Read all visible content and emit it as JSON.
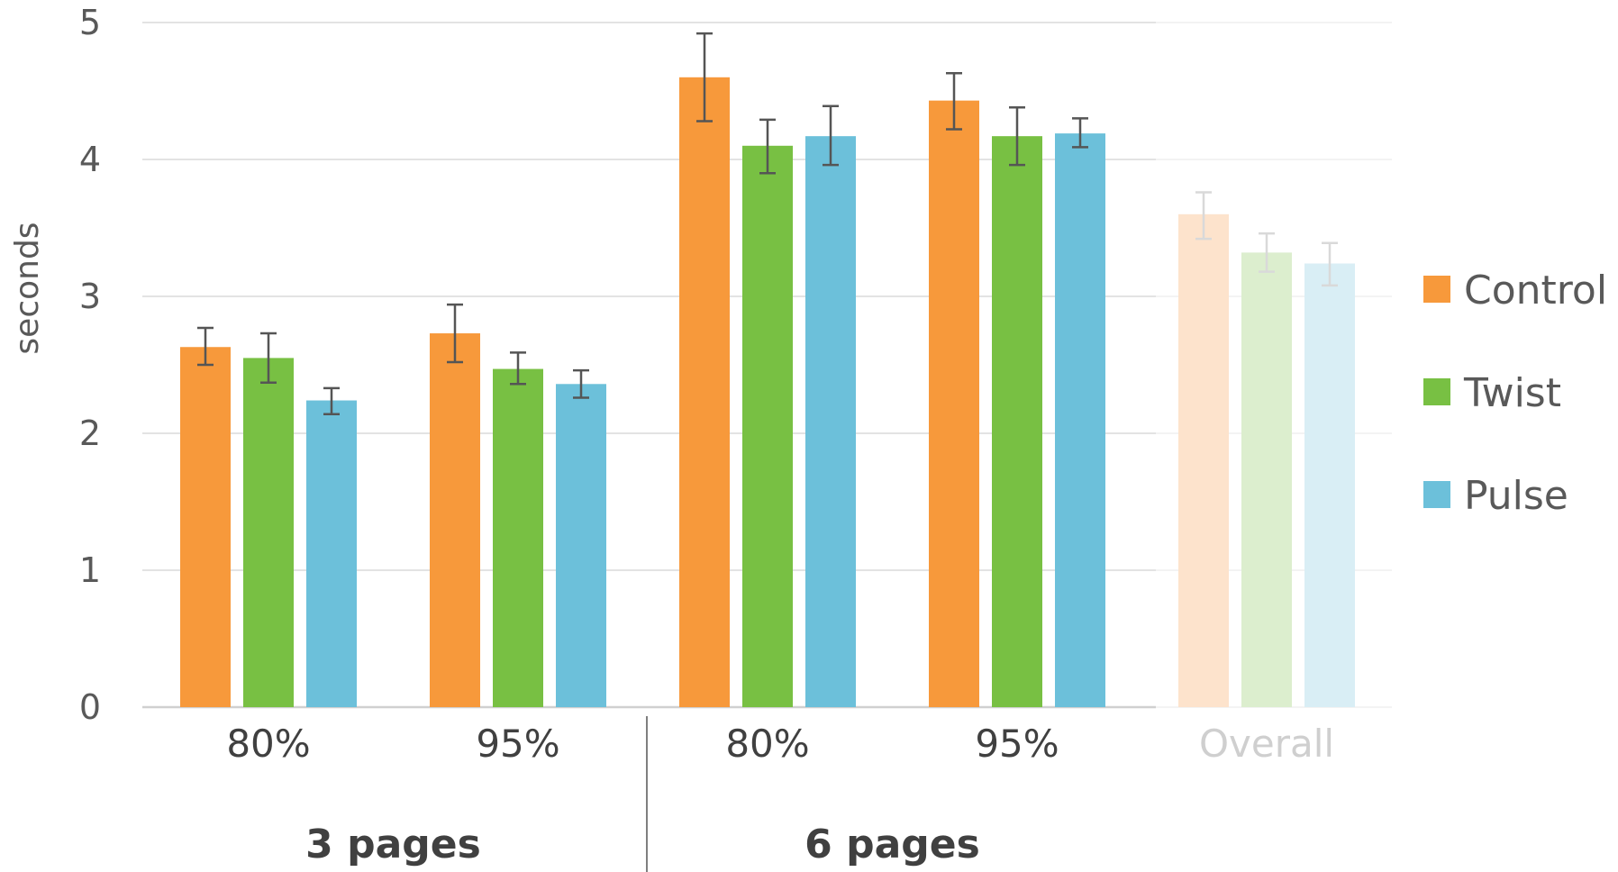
{
  "chart_data": {
    "type": "bar",
    "ylabel": "seconds",
    "ylim": [
      0,
      5
    ],
    "yticks": [
      "0",
      "1",
      "2",
      "3",
      "4",
      "5"
    ],
    "grid": true,
    "legend_position": "right",
    "categories": [
      {
        "label": "80%",
        "group": "3 pages"
      },
      {
        "label": "95%",
        "group": "3 pages"
      },
      {
        "label": "80%",
        "group": "6 pages"
      },
      {
        "label": "95%",
        "group": "6 pages"
      },
      {
        "label": "Overall",
        "group": "",
        "faded": true
      }
    ],
    "groups": [
      "3 pages",
      "6 pages"
    ],
    "series": [
      {
        "name": "Control",
        "color": "#F7993B",
        "faded_color": "#FDE3CC",
        "values": [
          2.63,
          2.73,
          4.6,
          4.43,
          3.6
        ],
        "errors": [
          [
            2.5,
            2.77
          ],
          [
            2.52,
            2.94
          ],
          [
            4.28,
            4.92
          ],
          [
            4.22,
            4.63
          ],
          [
            3.42,
            3.76
          ]
        ]
      },
      {
        "name": "Twist",
        "color": "#78C043",
        "faded_color": "#DCEECE",
        "values": [
          2.55,
          2.47,
          4.1,
          4.17,
          3.32
        ],
        "errors": [
          [
            2.37,
            2.73
          ],
          [
            2.36,
            2.59
          ],
          [
            3.9,
            4.29
          ],
          [
            3.96,
            4.38
          ],
          [
            3.18,
            3.46
          ]
        ]
      },
      {
        "name": "Pulse",
        "color": "#6CC0DA",
        "faded_color": "#D9EEF5",
        "values": [
          2.24,
          2.36,
          4.17,
          4.19,
          3.24
        ],
        "errors": [
          [
            2.14,
            2.33
          ],
          [
            2.26,
            2.46
          ],
          [
            3.96,
            4.39
          ],
          [
            4.09,
            4.3
          ],
          [
            3.08,
            3.39
          ]
        ]
      }
    ]
  }
}
